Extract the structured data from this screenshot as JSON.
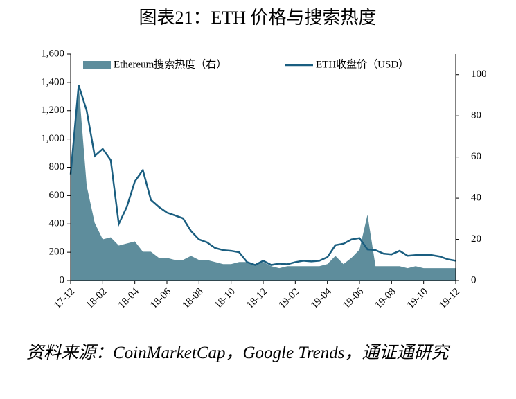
{
  "chart_data": {
    "type": "combo",
    "title": "图表21：ETH 价格与搜索热度",
    "categories": [
      "17-12",
      null,
      null,
      null,
      "18-02",
      null,
      null,
      null,
      "18-04",
      null,
      null,
      null,
      "18-06",
      null,
      null,
      null,
      "18-08",
      null,
      null,
      null,
      "18-10",
      null,
      null,
      null,
      "18-12",
      null,
      null,
      null,
      "19-02",
      null,
      null,
      null,
      "19-04",
      null,
      null,
      null,
      "19-06",
      null,
      null,
      null,
      "19-08",
      null,
      null,
      null,
      "19-10",
      null,
      null,
      null,
      "19-12"
    ],
    "series": [
      {
        "name": "Ethereum搜索热度（右）",
        "type": "area",
        "axis": "y2",
        "color": "#5e8d9c",
        "values": [
          55,
          95,
          46,
          28,
          20,
          21,
          17,
          18,
          19,
          14,
          14,
          11,
          11,
          10,
          10,
          12,
          10,
          10,
          9,
          8,
          8,
          9,
          9,
          8,
          9,
          7,
          6,
          7,
          7,
          7,
          7,
          7,
          8,
          12,
          8,
          11,
          15,
          32,
          7,
          7,
          7,
          7,
          6,
          7,
          6,
          6,
          6,
          6,
          6
        ]
      },
      {
        "name": "ETH收盘价（USD）",
        "type": "line",
        "axis": "y",
        "color": "#1a5e80",
        "values": [
          750,
          1380,
          1200,
          880,
          930,
          850,
          400,
          520,
          700,
          780,
          570,
          520,
          480,
          460,
          440,
          350,
          290,
          270,
          230,
          215,
          210,
          200,
          130,
          110,
          140,
          110,
          120,
          115,
          130,
          140,
          135,
          140,
          165,
          250,
          260,
          290,
          300,
          220,
          215,
          190,
          185,
          210,
          175,
          180,
          180,
          180,
          170,
          150,
          140
        ]
      }
    ],
    "ylim": [
      0,
      1600
    ],
    "yticks": [
      0,
      200,
      400,
      600,
      800,
      {
        "value": 1000,
        "label": "1,000"
      },
      {
        "value": 1200,
        "label": "1,200"
      },
      {
        "value": 1400,
        "label": "1,400"
      },
      {
        "value": 1600,
        "label": "1,600"
      }
    ],
    "y2lim": [
      0,
      110
    ],
    "y2ticks": [
      0,
      20,
      40,
      60,
      80,
      100
    ],
    "legend": "top"
  },
  "source": "资料来源：CoinMarketCap，Google Trends，通证通研究"
}
